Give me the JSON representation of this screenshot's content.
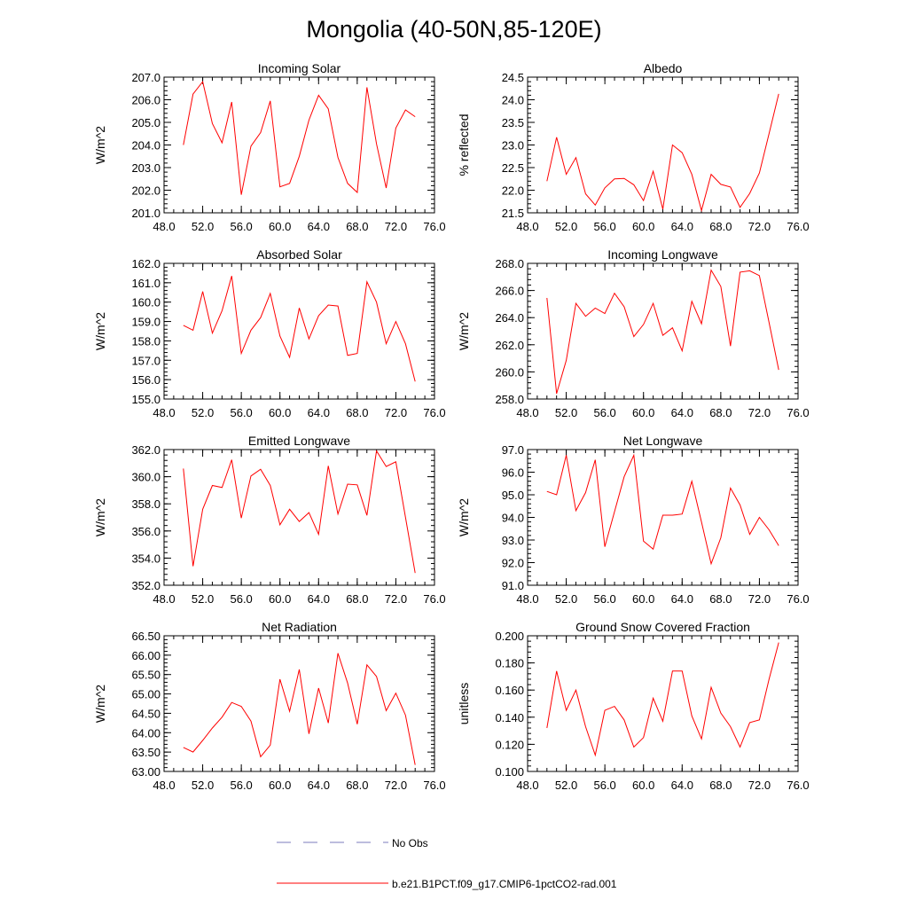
{
  "title": "Mongolia (40-50N,85-120E)",
  "legend": {
    "obs_label": "No Obs",
    "obs_color": "#7b7bbd",
    "model_label": "b.e21.B1PCT.f09_g17.CMIP6-1pctCO2-rad.001",
    "model_color": "#ff0000"
  },
  "chart_data": [
    {
      "type": "line",
      "title": "Incoming Solar",
      "ylabel": "W/m^2",
      "xlim": [
        48,
        76
      ],
      "ylim": [
        201,
        207
      ],
      "xticks": [
        "48.0",
        "52.0",
        "56.0",
        "60.0",
        "64.0",
        "68.0",
        "72.0",
        "76.0"
      ],
      "yticks": [
        "201.0",
        "202.0",
        "203.0",
        "204.0",
        "205.0",
        "206.0",
        "207.0"
      ],
      "x": [
        50,
        51,
        52,
        53,
        54,
        55,
        56,
        57,
        58,
        59,
        60,
        61,
        62,
        63,
        64,
        65,
        66,
        67,
        68,
        69,
        70,
        71,
        72,
        73,
        74
      ],
      "y": [
        204.0,
        206.25,
        206.8,
        204.95,
        204.1,
        205.9,
        201.8,
        203.95,
        204.55,
        205.95,
        202.15,
        202.3,
        203.5,
        205.1,
        206.2,
        205.6,
        203.45,
        202.3,
        201.9,
        206.55,
        204.05,
        202.1,
        204.75,
        205.55,
        205.25
      ]
    },
    {
      "type": "line",
      "title": "Albedo",
      "ylabel": "% reflected",
      "xlim": [
        48,
        76
      ],
      "ylim": [
        21.5,
        24.5
      ],
      "xticks": [
        "48.0",
        "52.0",
        "56.0",
        "60.0",
        "64.0",
        "68.0",
        "72.0",
        "76.0"
      ],
      "yticks": [
        "21.5",
        "22.0",
        "22.5",
        "23.0",
        "23.5",
        "24.0",
        "24.5"
      ],
      "x": [
        50,
        51,
        52,
        53,
        54,
        55,
        56,
        57,
        58,
        59,
        60,
        61,
        62,
        63,
        64,
        65,
        66,
        67,
        68,
        69,
        70,
        71,
        72,
        73,
        74
      ],
      "y": [
        22.2,
        23.17,
        22.35,
        22.72,
        21.92,
        21.67,
        22.05,
        22.25,
        22.26,
        22.12,
        21.77,
        22.42,
        21.58,
        23.0,
        22.83,
        22.35,
        21.55,
        22.35,
        22.13,
        22.07,
        21.62,
        21.93,
        22.38,
        23.25,
        24.13
      ]
    },
    {
      "type": "line",
      "title": "Absorbed Solar",
      "ylabel": "W/m^2",
      "xlim": [
        48,
        76
      ],
      "ylim": [
        155,
        162
      ],
      "xticks": [
        "48.0",
        "52.0",
        "56.0",
        "60.0",
        "64.0",
        "68.0",
        "72.0",
        "76.0"
      ],
      "yticks": [
        "155.0",
        "156.0",
        "157.0",
        "158.0",
        "159.0",
        "160.0",
        "161.0",
        "162.0"
      ],
      "x": [
        50,
        51,
        52,
        53,
        54,
        55,
        56,
        57,
        58,
        59,
        60,
        61,
        62,
        63,
        64,
        65,
        66,
        67,
        68,
        69,
        70,
        71,
        72,
        73,
        74
      ],
      "y": [
        158.8,
        158.55,
        160.55,
        158.4,
        159.55,
        161.35,
        157.35,
        158.55,
        159.2,
        160.45,
        158.25,
        157.15,
        159.7,
        158.1,
        159.3,
        159.85,
        159.8,
        157.25,
        157.35,
        161.05,
        160.0,
        157.85,
        159.0,
        157.85,
        155.9
      ]
    },
    {
      "type": "line",
      "title": "Incoming Longwave",
      "ylabel": "W/m^2",
      "xlim": [
        48,
        76
      ],
      "ylim": [
        258,
        268
      ],
      "xticks": [
        "48.0",
        "52.0",
        "56.0",
        "60.0",
        "64.0",
        "68.0",
        "72.0",
        "76.0"
      ],
      "yticks": [
        "258.0",
        "260.0",
        "262.0",
        "264.0",
        "266.0",
        "268.0"
      ],
      "x": [
        50,
        51,
        52,
        53,
        54,
        55,
        56,
        57,
        58,
        59,
        60,
        61,
        62,
        63,
        64,
        65,
        66,
        67,
        68,
        69,
        70,
        71,
        72,
        73,
        74
      ],
      "y": [
        265.45,
        258.4,
        260.85,
        265.05,
        264.1,
        264.7,
        264.3,
        265.8,
        264.8,
        262.6,
        263.5,
        265.05,
        262.7,
        263.25,
        261.55,
        265.2,
        263.55,
        267.5,
        266.3,
        261.9,
        267.35,
        267.45,
        267.1,
        263.65,
        260.15
      ]
    },
    {
      "type": "line",
      "title": "Emitted Longwave",
      "ylabel": "W/m^2",
      "xlim": [
        48,
        76
      ],
      "ylim": [
        352,
        362
      ],
      "xticks": [
        "48.0",
        "52.0",
        "56.0",
        "60.0",
        "64.0",
        "68.0",
        "72.0",
        "76.0"
      ],
      "yticks": [
        "352.0",
        "354.0",
        "356.0",
        "358.0",
        "360.0",
        "362.0"
      ],
      "x": [
        50,
        51,
        52,
        53,
        54,
        55,
        56,
        57,
        58,
        59,
        60,
        61,
        62,
        63,
        64,
        65,
        66,
        67,
        68,
        69,
        70,
        71,
        72,
        73,
        74
      ],
      "y": [
        360.6,
        353.4,
        357.6,
        359.35,
        359.2,
        361.25,
        356.95,
        360.05,
        360.55,
        359.35,
        356.45,
        357.6,
        356.7,
        357.35,
        355.75,
        360.8,
        357.25,
        359.45,
        359.4,
        357.15,
        361.9,
        360.75,
        361.1,
        357.0,
        352.9
      ]
    },
    {
      "type": "line",
      "title": "Net Longwave",
      "ylabel": "W/m^2",
      "xlim": [
        48,
        76
      ],
      "ylim": [
        91,
        97
      ],
      "xticks": [
        "48.0",
        "52.0",
        "56.0",
        "60.0",
        "64.0",
        "68.0",
        "72.0",
        "76.0"
      ],
      "yticks": [
        "91.0",
        "92.0",
        "93.0",
        "94.0",
        "95.0",
        "96.0",
        "97.0"
      ],
      "x": [
        50,
        51,
        52,
        53,
        54,
        55,
        56,
        57,
        58,
        59,
        60,
        61,
        62,
        63,
        64,
        65,
        66,
        67,
        68,
        69,
        70,
        71,
        72,
        73,
        74
      ],
      "y": [
        95.15,
        95.0,
        96.75,
        94.3,
        95.1,
        96.55,
        92.7,
        94.25,
        95.8,
        96.75,
        92.95,
        92.6,
        94.1,
        94.1,
        94.15,
        95.6,
        93.8,
        91.95,
        93.1,
        95.3,
        94.55,
        93.25,
        94.0,
        93.45,
        92.75
      ]
    },
    {
      "type": "line",
      "title": "Net Radiation",
      "ylabel": "W/m^2",
      "xlim": [
        48,
        76
      ],
      "ylim": [
        63,
        66.5
      ],
      "xticks": [
        "48.0",
        "52.0",
        "56.0",
        "60.0",
        "64.0",
        "68.0",
        "72.0",
        "76.0"
      ],
      "yticks": [
        "63.00",
        "63.50",
        "64.00",
        "64.50",
        "65.00",
        "65.50",
        "66.00",
        "66.50"
      ],
      "x": [
        50,
        51,
        52,
        53,
        54,
        55,
        56,
        57,
        58,
        59,
        60,
        61,
        62,
        63,
        64,
        65,
        66,
        67,
        68,
        69,
        70,
        71,
        72,
        73,
        74
      ],
      "y": [
        63.62,
        63.5,
        63.8,
        64.12,
        64.4,
        64.78,
        64.68,
        64.3,
        63.38,
        63.68,
        65.38,
        64.55,
        65.63,
        63.97,
        65.15,
        64.25,
        66.05,
        65.28,
        64.22,
        65.75,
        65.45,
        64.57,
        65.02,
        64.45,
        63.17
      ]
    },
    {
      "type": "line",
      "title": "Ground Snow Covered Fraction",
      "ylabel": "unitless",
      "xlim": [
        48,
        76
      ],
      "ylim": [
        0.1,
        0.2
      ],
      "xticks": [
        "48.0",
        "52.0",
        "56.0",
        "60.0",
        "64.0",
        "68.0",
        "72.0",
        "76.0"
      ],
      "yticks": [
        "0.100",
        "0.120",
        "0.140",
        "0.160",
        "0.180",
        "0.200"
      ],
      "x": [
        50,
        51,
        52,
        53,
        54,
        55,
        56,
        57,
        58,
        59,
        60,
        61,
        62,
        63,
        64,
        65,
        66,
        67,
        68,
        69,
        70,
        71,
        72,
        73,
        74
      ],
      "y": [
        0.132,
        0.174,
        0.145,
        0.16,
        0.133,
        0.112,
        0.145,
        0.148,
        0.138,
        0.118,
        0.125,
        0.154,
        0.137,
        0.174,
        0.174,
        0.141,
        0.124,
        0.162,
        0.143,
        0.133,
        0.118,
        0.136,
        0.138,
        0.168,
        0.195
      ]
    }
  ]
}
